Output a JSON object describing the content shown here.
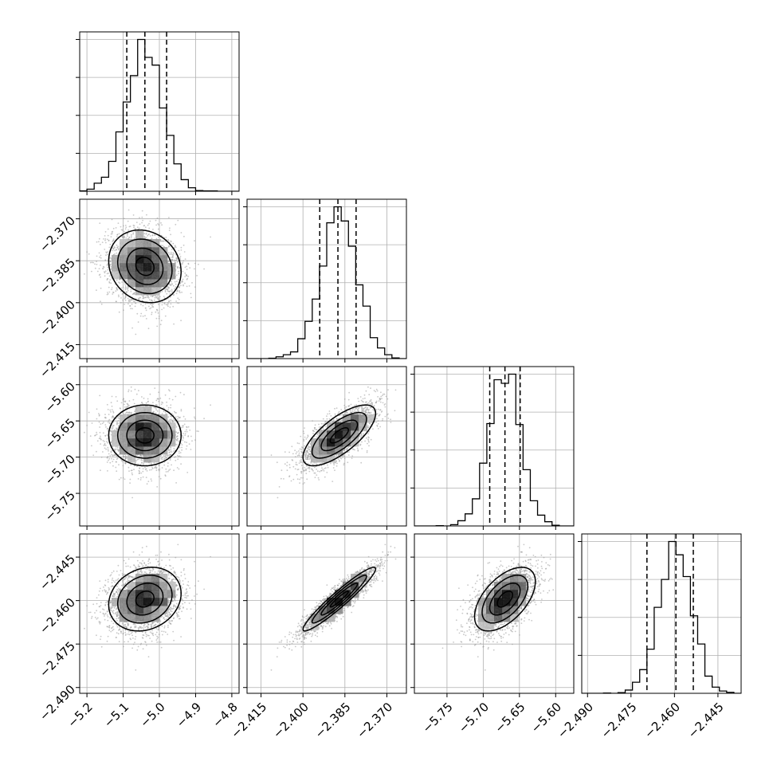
{
  "chart_data": {
    "type": "corner",
    "parameters": 4,
    "colors": {
      "line": "#000000",
      "grid": "#b0b0b0",
      "points": "#9a9a9a"
    },
    "grid": true,
    "axes": [
      {
        "index": 0,
        "range": [
          -5.22,
          -4.78
        ],
        "ticks": [
          -5.2,
          -5.1,
          -5.0,
          -4.9,
          -4.8
        ],
        "tick_labels": [
          "−5.2",
          "−5.1",
          "−5.0",
          "−4.9",
          "−4.8"
        ],
        "mean": -5.04,
        "sigma": 0.05,
        "quantiles": [
          -5.09,
          -5.04,
          -4.98
        ]
      },
      {
        "index": 1,
        "range": [
          -2.42,
          -2.363
        ],
        "ticks": [
          -2.415,
          -2.4,
          -2.385,
          -2.37
        ],
        "tick_labels": [
          "−2.415",
          "−2.400",
          "−2.385",
          "−2.370"
        ],
        "mean": -2.387,
        "sigma": 0.0065,
        "quantiles": [
          -2.394,
          -2.3875,
          -2.381
        ]
      },
      {
        "index": 2,
        "range": [
          -5.795,
          -5.575
        ],
        "ticks": [
          -5.75,
          -5.7,
          -5.65,
          -5.6
        ],
        "tick_labels": [
          "−5.75",
          "−5.70",
          "−5.65",
          "−5.60"
        ],
        "mean": -5.67,
        "sigma": 0.021,
        "quantiles": [
          -5.691,
          -5.67,
          -5.649
        ]
      },
      {
        "index": 3,
        "range": [
          -2.492,
          -2.437
        ],
        "ticks": [
          -2.49,
          -2.475,
          -2.46,
          -2.445
        ],
        "tick_labels": [
          "−2.490",
          "−2.475",
          "−2.460",
          "−2.445"
        ],
        "mean": -2.4595,
        "sigma": 0.0055,
        "quantiles": [
          -2.4695,
          -2.4595,
          -2.4535
        ]
      }
    ],
    "correlations": [
      {
        "pair": [
          1,
          0
        ],
        "r": -0.15
      },
      {
        "pair": [
          2,
          0
        ],
        "r": 0.0
      },
      {
        "pair": [
          2,
          1
        ],
        "r": 0.72
      },
      {
        "pair": [
          3,
          0
        ],
        "r": 0.18
      },
      {
        "pair": [
          3,
          1
        ],
        "r": 0.95
      },
      {
        "pair": [
          3,
          2
        ],
        "r": 0.55
      }
    ],
    "contour_levels_sigma": [
      0.5,
      1.0,
      1.5,
      2.0
    ]
  }
}
